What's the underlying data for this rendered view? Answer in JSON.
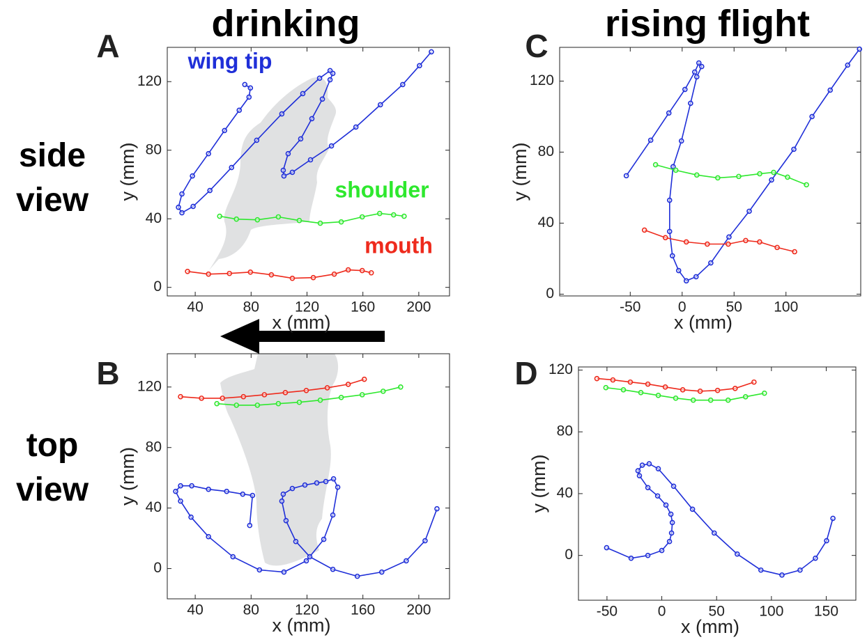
{
  "column_titles": [
    "drinking",
    "rising flight"
  ],
  "row_labels": [
    "side view",
    "top view"
  ],
  "chart_data": [
    {
      "type": "line",
      "panel": "A",
      "xlabel": "x (mm)",
      "ylabel": "y (mm)",
      "xlim": [
        20,
        222
      ],
      "ylim": [
        -5,
        140
      ],
      "xticks": [
        40,
        80,
        120,
        160,
        200
      ],
      "yticks": [
        0,
        40,
        80,
        120
      ],
      "series": [
        {
          "name": "wing tip",
          "color": "#1f2fd8",
          "x": [
            75.5,
            79.5,
            78.5,
            71.5,
            61,
            49.5,
            38,
            30.5,
            28,
            30.5,
            38.5,
            50.5,
            66,
            84,
            102,
            117,
            129,
            136.5,
            138.5,
            136.5,
            131,
            123.5,
            115.5,
            106.5,
            103,
            103.5,
            109.5,
            122.5,
            137.5,
            155,
            172.5,
            188.5,
            200.5,
            209
          ],
          "values": [
            118.3,
            116.3,
            111,
            103.3,
            91.5,
            78,
            65,
            54.5,
            46.7,
            43.5,
            47.2,
            56.5,
            69.9,
            85.8,
            101.2,
            113,
            122,
            126.4,
            124.8,
            121.1,
            109.8,
            98.4,
            86.6,
            78,
            68.3,
            65,
            67.1,
            74.4,
            82.5,
            93.5,
            106.5,
            118.3,
            129.3,
            137.4
          ]
        },
        {
          "name": "shoulder",
          "color": "#2ee82e",
          "x": [
            57.5,
            69.5,
            84.5,
            99.5,
            114.5,
            129.5,
            144.5,
            159.5,
            172,
            182,
            189.5
          ],
          "values": [
            41.5,
            39.8,
            39.4,
            41.1,
            39,
            37.4,
            38.2,
            41.1,
            43.1,
            42.3,
            41.5
          ]
        },
        {
          "name": "mouth",
          "color": "#ee2a1c",
          "x": [
            34.5,
            49.5,
            64.5,
            79.5,
            94.5,
            109.5,
            124.5,
            139.5,
            149.5,
            159.5,
            166
          ],
          "values": [
            9.3,
            7.7,
            8.1,
            8.9,
            7.3,
            5.3,
            5.7,
            7.7,
            10.2,
            9.8,
            8.5
          ]
        }
      ]
    },
    {
      "type": "line",
      "panel": "B",
      "xlabel": "x (mm)",
      "ylabel": "y (mm)",
      "xlim": [
        20,
        222
      ],
      "ylim": [
        -20,
        142
      ],
      "xticks": [
        40,
        80,
        120,
        160,
        200
      ],
      "yticks": [
        0,
        40,
        80,
        120
      ],
      "series": [
        {
          "color": "#1f2fd8",
          "x": [
            79,
            81,
            74,
            62.5,
            49.5,
            37.5,
            29.5,
            26,
            29.5,
            37,
            49.5,
            67,
            86,
            103.5,
            119.5,
            132,
            138.5,
            142,
            139,
            133.5,
            127,
            118.5,
            109.5,
            103,
            102,
            105,
            112,
            122,
            138.5,
            156,
            173.5,
            191,
            204.5,
            213
          ],
          "values": [
            28.5,
            48.3,
            49.2,
            51,
            52.4,
            54.7,
            54.7,
            51,
            44.6,
            34,
            21.1,
            7.8,
            -0.9,
            -2.3,
            5.1,
            19.3,
            35.4,
            53.8,
            59.3,
            57.5,
            56.6,
            55.2,
            52.9,
            49.2,
            44.6,
            31.7,
            17.9,
            7.8,
            -0.5,
            -5.1,
            -2.3,
            5.1,
            18.4,
            39.5
          ]
        },
        {
          "color": "#2ee82e",
          "x": [
            55.5,
            69.5,
            84.5,
            99.5,
            114.5,
            129.5,
            144.5,
            159.5,
            174.5,
            187
          ],
          "values": [
            109,
            108,
            108,
            109,
            109.9,
            111.3,
            113.1,
            114.9,
            117.2,
            120
          ]
        },
        {
          "color": "#ee2a1c",
          "x": [
            29.5,
            44.5,
            59.5,
            74.5,
            89.5,
            104.5,
            119.5,
            134.5,
            149.5,
            161
          ],
          "values": [
            113.6,
            112.6,
            112.6,
            113.6,
            114.9,
            116.3,
            117.7,
            119.5,
            121.8,
            125.1
          ]
        }
      ]
    },
    {
      "type": "line",
      "panel": "C",
      "xlabel": "x (mm)",
      "ylabel": "y (mm)",
      "xlim": [
        -118,
        172
      ],
      "ylim": [
        -1,
        139
      ],
      "xticks": [
        -50,
        0,
        50,
        100
      ],
      "yticks": [
        0,
        40,
        80,
        120
      ],
      "series": [
        {
          "color": "#1f2fd8",
          "x": [
            -53.8,
            -30.3,
            -12.8,
            2.7,
            12.1,
            16.1,
            18.8,
            14.1,
            8.1,
            -0.7,
            -8.7,
            -12.1,
            -12.1,
            -9.4,
            -3.4,
            4,
            13.4,
            27.6,
            45.1,
            64.6,
            86.1,
            107.6,
            125.1,
            142.6,
            159.4,
            170.8
          ],
          "values": [
            66.7,
            86.7,
            102,
            115.3,
            125.1,
            130.2,
            128.2,
            122.4,
            107.5,
            86.3,
            71.8,
            52.9,
            35.3,
            21.6,
            13.3,
            7.5,
            9.8,
            17.6,
            32.2,
            46.7,
            64.3,
            81.6,
            100,
            114.9,
            129,
            138
          ]
        },
        {
          "color": "#2ee82e",
          "x": [
            -25.6,
            -6.1,
            14.1,
            34.3,
            54.5,
            74.7,
            88.1,
            101.5,
            119.7
          ],
          "values": [
            72.9,
            69.8,
            67.1,
            65.5,
            66.3,
            67.8,
            68.6,
            65.9,
            61.6
          ]
        },
        {
          "color": "#ee2a1c",
          "x": [
            -36.3,
            -16.1,
            4,
            24.2,
            44.4,
            61.2,
            74.6,
            91.5,
            108.3
          ],
          "values": [
            36.1,
            31.8,
            29.4,
            28.2,
            28.2,
            30.2,
            29.4,
            26.3,
            23.9
          ]
        }
      ]
    },
    {
      "type": "line",
      "panel": "D",
      "xlabel": "x (mm)",
      "ylabel": "y (mm)",
      "xlim": [
        -76,
        177
      ],
      "ylim": [
        -29,
        122
      ],
      "xticks": [
        -50,
        0,
        50,
        100,
        150
      ],
      "yticks": [
        0,
        40,
        80,
        120
      ],
      "series": [
        {
          "color": "#1f2fd8",
          "x": [
            -50.3,
            -28,
            -12.7,
            0,
            7,
            8.9,
            9.6,
            8.3,
            3.8,
            -3.8,
            -12.7,
            -20.4,
            -21.7,
            -17.8,
            -11.5,
            -3.2,
            10.8,
            28,
            47.8,
            68.8,
            90.4,
            109.6,
            126.1,
            140.1,
            150.3,
            156.1
          ],
          "values": [
            5,
            -1.8,
            0,
            3.2,
            9,
            14.5,
            21.3,
            26.7,
            32.6,
            38.5,
            43.9,
            51.6,
            54.8,
            58.4,
            59.3,
            56.1,
            44.8,
            29.9,
            14.5,
            0.9,
            -9.5,
            -12.7,
            -9.5,
            -1.8,
            9.5,
            24
          ]
        },
        {
          "color": "#ee2a1c",
          "x": [
            -59.2,
            -44.6,
            -28.7,
            -12.7,
            3.2,
            19.1,
            35,
            50.9,
            66.9,
            84.1
          ],
          "values": [
            114.5,
            113.6,
            112.2,
            110.9,
            109,
            107.2,
            106.3,
            106.8,
            108.1,
            112.2
          ]
        },
        {
          "color": "#2ee82e",
          "x": [
            -51,
            -35,
            -19.1,
            -3.2,
            12.7,
            28.7,
            44.6,
            60.5,
            76.4,
            93.6
          ],
          "values": [
            108.6,
            107.2,
            105.4,
            103.6,
            101.8,
            100.5,
            100.5,
            100.5,
            102.7,
            105
          ]
        }
      ]
    }
  ]
}
